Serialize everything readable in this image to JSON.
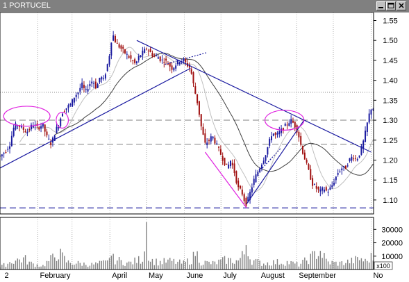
{
  "window": {
    "title": "1 PORTUCEL",
    "buttons": [
      "minimize-icon",
      "maximize-icon",
      "close-icon"
    ],
    "title_bar_color": "#808080"
  },
  "chart_data": {
    "type": "candlestick",
    "title": "1 PORTUCEL",
    "price_axis": {
      "ticks": [
        1.1,
        1.15,
        1.2,
        1.25,
        1.3,
        1.35,
        1.4,
        1.45,
        1.5,
        1.55
      ],
      "range": [
        1.065,
        1.57
      ]
    },
    "volume_axis": {
      "ticks": [
        10000,
        20000,
        30000
      ],
      "unit_label": "x100",
      "range": [
        0,
        39000
      ]
    },
    "x_labels": [
      {
        "label": "2",
        "day": 2
      },
      {
        "label": "February",
        "day": 31
      },
      {
        "label": "April",
        "day": 90
      },
      {
        "label": "May",
        "day": 120
      },
      {
        "label": "June",
        "day": 151
      },
      {
        "label": "July",
        "day": 181
      },
      {
        "label": "August",
        "day": 212
      },
      {
        "label": "September",
        "day": 243
      },
      {
        "label": "No",
        "day": 304
      }
    ],
    "month_ticks": [
      0,
      31,
      59,
      90,
      120,
      151,
      181,
      212,
      243,
      273,
      304
    ],
    "x_range": [
      0,
      306
    ],
    "price_path": [
      [
        0,
        1.21
      ],
      [
        4,
        1.22
      ],
      [
        8,
        1.24
      ],
      [
        11,
        1.28
      ],
      [
        14,
        1.29
      ],
      [
        18,
        1.28
      ],
      [
        22,
        1.27
      ],
      [
        27,
        1.29
      ],
      [
        31,
        1.28
      ],
      [
        35,
        1.29
      ],
      [
        38,
        1.26
      ],
      [
        42,
        1.24
      ],
      [
        45,
        1.27
      ],
      [
        48,
        1.29
      ],
      [
        51,
        1.32
      ],
      [
        54,
        1.33
      ],
      [
        58,
        1.34
      ],
      [
        61,
        1.36
      ],
      [
        64,
        1.37
      ],
      [
        67,
        1.39
      ],
      [
        70,
        1.37
      ],
      [
        73,
        1.39
      ],
      [
        76,
        1.4
      ],
      [
        79,
        1.38
      ],
      [
        82,
        1.41
      ],
      [
        85,
        1.4
      ],
      [
        88,
        1.44
      ],
      [
        90,
        1.47
      ],
      [
        92,
        1.52
      ],
      [
        94,
        1.5
      ],
      [
        96,
        1.49
      ],
      [
        99,
        1.48
      ],
      [
        102,
        1.47
      ],
      [
        105,
        1.46
      ],
      [
        108,
        1.45
      ],
      [
        111,
        1.44
      ],
      [
        114,
        1.46
      ],
      [
        117,
        1.47
      ],
      [
        120,
        1.48
      ],
      [
        123,
        1.47
      ],
      [
        126,
        1.46
      ],
      [
        129,
        1.46
      ],
      [
        132,
        1.45
      ],
      [
        135,
        1.45
      ],
      [
        138,
        1.44
      ],
      [
        141,
        1.43
      ],
      [
        144,
        1.44
      ],
      [
        147,
        1.45
      ],
      [
        150,
        1.45
      ],
      [
        153,
        1.44
      ],
      [
        156,
        1.43
      ],
      [
        159,
        1.38
      ],
      [
        162,
        1.34
      ],
      [
        165,
        1.28
      ],
      [
        168,
        1.24
      ],
      [
        171,
        1.25
      ],
      [
        174,
        1.26
      ],
      [
        177,
        1.24
      ],
      [
        180,
        1.22
      ],
      [
        183,
        1.2
      ],
      [
        186,
        1.18
      ],
      [
        189,
        1.2
      ],
      [
        192,
        1.17
      ],
      [
        195,
        1.13
      ],
      [
        198,
        1.12
      ],
      [
        200,
        1.1
      ],
      [
        202,
        1.09
      ],
      [
        205,
        1.12
      ],
      [
        208,
        1.15
      ],
      [
        211,
        1.17
      ],
      [
        214,
        1.19
      ],
      [
        217,
        1.21
      ],
      [
        220,
        1.24
      ],
      [
        223,
        1.27
      ],
      [
        226,
        1.26
      ],
      [
        229,
        1.27
      ],
      [
        232,
        1.28
      ],
      [
        235,
        1.29
      ],
      [
        238,
        1.3
      ],
      [
        241,
        1.29
      ],
      [
        244,
        1.27
      ],
      [
        247,
        1.23
      ],
      [
        250,
        1.2
      ],
      [
        253,
        1.17
      ],
      [
        256,
        1.14
      ],
      [
        259,
        1.13
      ],
      [
        262,
        1.12
      ],
      [
        265,
        1.13
      ],
      [
        268,
        1.12
      ],
      [
        271,
        1.13
      ],
      [
        274,
        1.15
      ],
      [
        277,
        1.17
      ],
      [
        280,
        1.18
      ],
      [
        283,
        1.18
      ],
      [
        286,
        1.2
      ],
      [
        289,
        1.21
      ],
      [
        292,
        1.2
      ],
      [
        295,
        1.22
      ],
      [
        298,
        1.25
      ],
      [
        300,
        1.28
      ],
      [
        302,
        1.31
      ],
      [
        304,
        1.33
      ]
    ],
    "volume_path": [
      [
        0,
        2000
      ],
      [
        10,
        7000
      ],
      [
        20,
        9000
      ],
      [
        25,
        5000
      ],
      [
        35,
        3000
      ],
      [
        45,
        11000
      ],
      [
        48,
        14000
      ],
      [
        55,
        6000
      ],
      [
        65,
        5000
      ],
      [
        75,
        4000
      ],
      [
        88,
        6000
      ],
      [
        90,
        15000
      ],
      [
        92,
        9000
      ],
      [
        105,
        5000
      ],
      [
        117,
        9000
      ],
      [
        120,
        39000
      ],
      [
        122,
        8000
      ],
      [
        130,
        6000
      ],
      [
        140,
        7000
      ],
      [
        150,
        5000
      ],
      [
        158,
        9000
      ],
      [
        160,
        15000
      ],
      [
        165,
        6000
      ],
      [
        175,
        5000
      ],
      [
        185,
        8000
      ],
      [
        195,
        7000
      ],
      [
        200,
        13000
      ],
      [
        202,
        26000
      ],
      [
        205,
        8000
      ],
      [
        215,
        5000
      ],
      [
        225,
        6000
      ],
      [
        235,
        6000
      ],
      [
        245,
        4000
      ],
      [
        255,
        10000
      ],
      [
        262,
        16000
      ],
      [
        268,
        6000
      ],
      [
        278,
        5000
      ],
      [
        288,
        7000
      ],
      [
        296,
        9000
      ],
      [
        300,
        6000
      ],
      [
        303,
        10000
      ]
    ],
    "moving_average_colors": [
      "#bfbfbf",
      "#404040"
    ],
    "trendlines": [
      {
        "from": [
          0,
          1.18
        ],
        "to": [
          156,
          1.43
        ],
        "color": "#1a1aa0",
        "style": "solid"
      },
      {
        "from": [
          135,
          1.44
        ],
        "to": [
          170,
          1.47
        ],
        "color": "#1a1aa0",
        "style": "dotted"
      },
      {
        "from": [
          112,
          1.5
        ],
        "to": [
          304,
          1.22
        ],
        "color": "#1a1aa0",
        "style": "solid"
      },
      {
        "from": [
          202,
          1.09
        ],
        "to": [
          249,
          1.3
        ],
        "color": "#1a1aa0",
        "style": "solid"
      },
      {
        "from": [
          168,
          1.22
        ],
        "to": [
          202,
          1.08
        ],
        "color": "#e020e0",
        "style": "solid"
      },
      {
        "from": [
          215,
          1.18
        ],
        "to": [
          230,
          1.23
        ],
        "color": "#1a1aa0",
        "style": "dotted"
      }
    ],
    "horizontal_lines": [
      {
        "price": 1.37,
        "color": "#808080",
        "style": "dotted"
      },
      {
        "price": 1.3,
        "color": "#808080",
        "style": "dashed"
      },
      {
        "price": 1.24,
        "color": "#808080",
        "style": "dashed"
      },
      {
        "price": 1.08,
        "color": "#2020a0",
        "style": "dashed"
      }
    ],
    "ellipses": [
      {
        "cx": 22,
        "cy": 1.31,
        "rx": 19,
        "ry": 0.025
      },
      {
        "cx": 51,
        "cy": 1.3,
        "rx": 5,
        "ry": 0.02
      },
      {
        "cx": 233,
        "cy": 1.3,
        "rx": 16,
        "ry": 0.025
      }
    ],
    "colors": {
      "up": "#1a1aa0",
      "down": "#a01010",
      "volume": "#808080",
      "ellipse": "#e020e0",
      "background": "#ffffff",
      "grid": "#b0b0b0"
    }
  }
}
